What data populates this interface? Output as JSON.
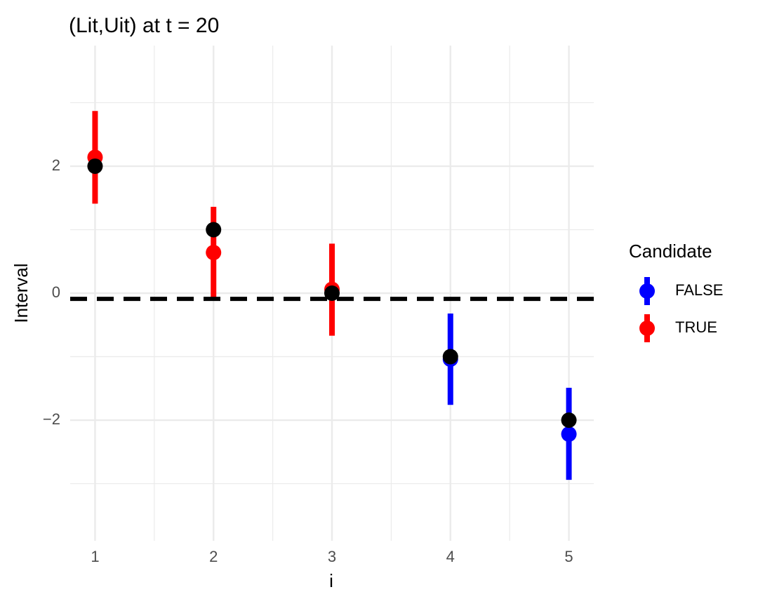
{
  "chart_data": {
    "type": "errorbar",
    "title": "(Lit,Uit) at t = 20",
    "x_label": "i",
    "y_label": "Interval",
    "legend_title": "Candidate",
    "legend_position": "right",
    "grid": true,
    "xlim": [
      0.79,
      5.21
    ],
    "ylim": [
      -3.9,
      3.9
    ],
    "xticks": [
      1,
      2,
      3,
      4,
      5
    ],
    "yticks": [
      {
        "value": -2,
        "label": "−2"
      },
      0,
      2
    ],
    "xminor": [
      1.5,
      2.5,
      3.5,
      4.5
    ],
    "yminor": [
      -3,
      -1,
      1,
      3
    ],
    "series": [
      {
        "name": "FALSE",
        "color": "#0000ff",
        "x": [
          4,
          5
        ],
        "values": [
          -1.04,
          -2.22
        ],
        "lower": [
          -1.76,
          -2.94
        ],
        "upper": [
          -0.32,
          -1.49
        ]
      },
      {
        "name": "TRUE",
        "color": "#ff0000",
        "x": [
          1,
          2,
          3
        ],
        "values": [
          2.14,
          0.64,
          0.06
        ],
        "lower": [
          1.41,
          -0.09,
          -0.67
        ],
        "upper": [
          2.87,
          1.36,
          0.78
        ]
      }
    ],
    "reference_points": {
      "color": "#000000",
      "x": [
        1,
        2,
        3,
        4,
        5
      ],
      "values": [
        2,
        1,
        0,
        -1,
        -2
      ]
    },
    "hline": {
      "value": -0.09,
      "color": "#000000",
      "style": "dashed"
    }
  }
}
